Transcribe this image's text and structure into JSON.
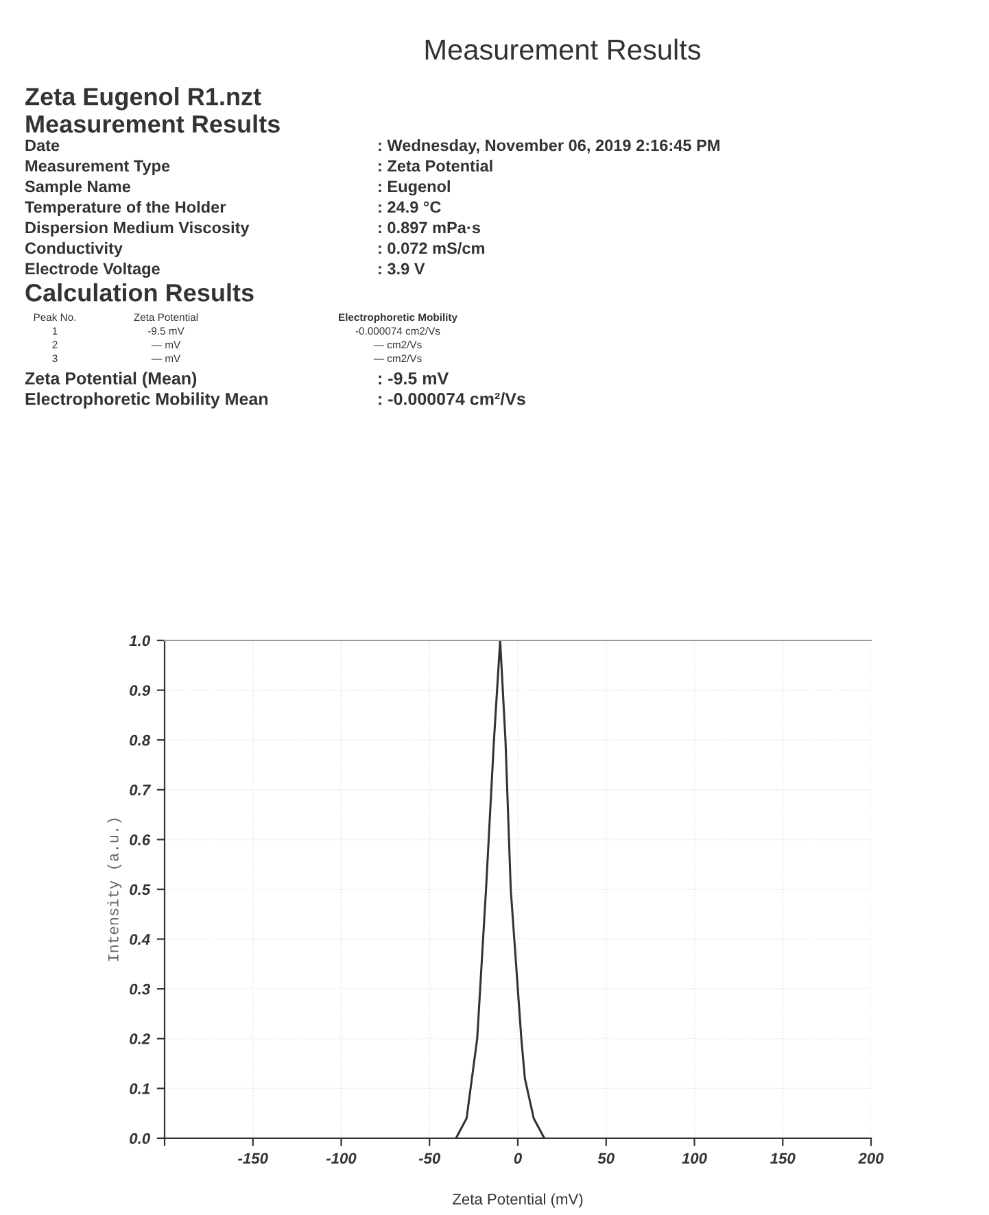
{
  "chart_data": {
    "type": "line",
    "title": "Measurement Results",
    "xlabel": "Zeta Potential (mV)",
    "ylabel": "Intensity (a.u.)",
    "series": [
      {
        "color": "#333333",
        "x": [
          -35,
          -29,
          -26,
          -23,
          -18,
          -13.5,
          -10,
          -7,
          -4,
          2,
          4,
          9,
          15
        ],
        "values": [
          0,
          0.04,
          0.12,
          0.2,
          0.5,
          0.8,
          1.0,
          0.8,
          0.5,
          0.2,
          0.12,
          0.04,
          0
        ]
      }
    ],
    "xlim": [
      -200,
      200
    ],
    "xticks": [
      {
        "value": -200,
        "label": null
      },
      -150,
      -100,
      -50,
      0,
      50,
      100,
      150,
      200
    ],
    "ylim": [
      0,
      1.0
    ],
    "yticks": [
      {
        "value": 0,
        "label": "0.0"
      },
      0.1,
      0.2,
      0.3,
      0.4,
      0.5,
      0.6,
      0.7,
      0.8,
      0.9,
      {
        "value": 1,
        "label": "1.0"
      }
    ],
    "grid": true,
    "marker": "none",
    "line_style": "solid",
    "annotations": [
      "Zeta Eugenol R1.nzt",
      "Measurement Results",
      "Date",
      ": Wednesday, November 06, 2019 2:16:45 PM",
      "Measurement Type",
      ": Zeta Potential",
      "Sample Name",
      ": Eugenol",
      "Temperature of the Holder",
      ": 24.9 °C",
      "Dispersion Medium Viscosity",
      ": 0.897 mPa·s",
      "Conductivity",
      ": 0.072 mS/cm",
      "Electrode Voltage",
      ": 3.9 V",
      "Calculation Results",
      "Peak No.",
      "Zeta Potential",
      "Electrophoretic Mobility",
      "1",
      "-9.5 mV",
      "-0.000074 cm2/Vs",
      "2",
      "— mV",
      "— cm2/Vs",
      "3",
      "— mV",
      "— cm2/Vs",
      "Zeta Potential (Mean)",
      ": -9.5 mV",
      "Electrophoretic Mobility Mean",
      ": -0.000074 cm²/Vs"
    ]
  }
}
